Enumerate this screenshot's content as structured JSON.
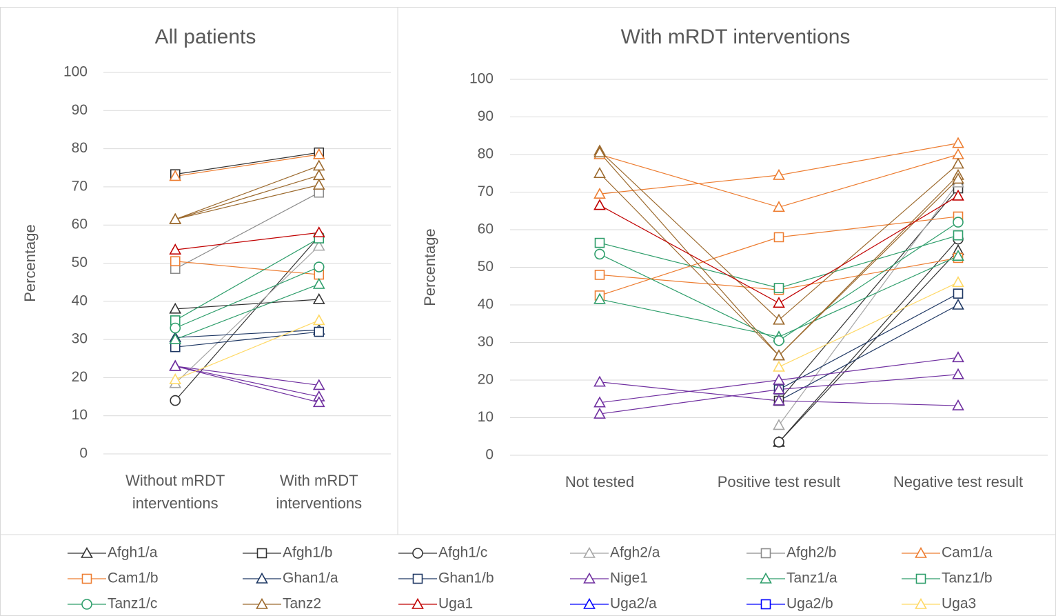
{
  "legend": [
    {
      "name": "Afgh1/a",
      "color": "#333333",
      "marker": "triangle"
    },
    {
      "name": "Afgh1/b",
      "color": "#333333",
      "marker": "square"
    },
    {
      "name": "Afgh1/c",
      "color": "#333333",
      "marker": "circle"
    },
    {
      "name": "Afgh2/a",
      "color": "#a5a5a5",
      "marker": "triangle"
    },
    {
      "name": "Afgh2/b",
      "color": "#8c8c8c",
      "marker": "square"
    },
    {
      "name": "Cam1/a",
      "color": "#ed7d31",
      "marker": "triangle"
    },
    {
      "name": "Cam1/b",
      "color": "#ed7d31",
      "marker": "square"
    },
    {
      "name": "Ghan1/a",
      "color": "#1f3864",
      "marker": "triangle"
    },
    {
      "name": "Ghan1/b",
      "color": "#1f3864",
      "marker": "square"
    },
    {
      "name": "Nige1",
      "color": "#7030a0",
      "marker": "triangle"
    },
    {
      "name": "Tanz1/a",
      "color": "#2e9e6b",
      "marker": "triangle"
    },
    {
      "name": "Tanz1/b",
      "color": "#2e9e6b",
      "marker": "square"
    },
    {
      "name": "Tanz1/c",
      "color": "#2e9e6b",
      "marker": "circle"
    },
    {
      "name": "Tanz2",
      "color": "#9c6a2e",
      "marker": "triangle"
    },
    {
      "name": "Uga1",
      "color": "#c00000",
      "marker": "triangle"
    },
    {
      "name": "Uga2/a",
      "color": "#0000ff",
      "marker": "triangle"
    },
    {
      "name": "Uga2/b",
      "color": "#0000ff",
      "marker": "square"
    },
    {
      "name": "Uga3",
      "color": "#ffd966",
      "marker": "triangle"
    }
  ],
  "chart_data": [
    {
      "type": "line",
      "title": "All patients",
      "y_label": "Percentage",
      "categories": [
        "Without mRDT interventions",
        "With mRDT interventions"
      ],
      "ylim": [
        0,
        100
      ],
      "yticks": [
        0,
        10,
        20,
        30,
        40,
        50,
        60,
        70,
        80,
        90,
        100
      ],
      "grid": true,
      "series": [
        {
          "name": "Afgh1/a",
          "values": [
            38,
            40.5
          ]
        },
        {
          "name": "Afgh1/b",
          "values": [
            73.3,
            79
          ]
        },
        {
          "name": "Afgh1/c",
          "values": [
            14,
            57
          ]
        },
        {
          "name": "Afgh2/a",
          "values": [
            18.5,
            54.5
          ]
        },
        {
          "name": "Afgh2/b",
          "values": [
            48.5,
            68.5
          ]
        },
        {
          "name": "Cam1/a",
          "values": [
            72.8,
            78.5
          ]
        },
        {
          "name": "Cam1/b",
          "values": [
            50.5,
            47
          ]
        },
        {
          "name": "Ghan1/a",
          "values": [
            30.5,
            32.5
          ]
        },
        {
          "name": "Ghan1/b",
          "values": [
            28,
            32
          ]
        },
        {
          "name": "Nige1",
          "values": [
            23,
            18
          ]
        },
        {
          "name": "Nige1",
          "values": [
            23,
            15
          ]
        },
        {
          "name": "Nige1",
          "values": [
            23,
            13.5
          ]
        },
        {
          "name": "Tanz1/a",
          "values": [
            30,
            44.5
          ]
        },
        {
          "name": "Tanz1/b",
          "values": [
            35,
            56.5
          ]
        },
        {
          "name": "Tanz1/c",
          "values": [
            33,
            49
          ]
        },
        {
          "name": "Tanz2",
          "values": [
            61.5,
            75.5
          ]
        },
        {
          "name": "Tanz2",
          "values": [
            61.5,
            73
          ]
        },
        {
          "name": "Tanz2",
          "values": [
            61.5,
            70.5
          ]
        },
        {
          "name": "Uga1",
          "values": [
            53.5,
            58
          ]
        },
        {
          "name": "Uga3",
          "values": [
            19.5,
            35
          ]
        }
      ]
    },
    {
      "type": "line",
      "title": "With mRDT interventions",
      "y_label": "Percentage",
      "categories": [
        "Not tested",
        "Positive test result",
        "Negative test result"
      ],
      "ylim": [
        0,
        100
      ],
      "yticks": [
        0,
        10,
        20,
        30,
        40,
        50,
        60,
        70,
        80,
        90,
        100
      ],
      "grid": true,
      "series": [
        {
          "name": "Afgh1/a",
          "values": [
            null,
            3.5,
            54.5
          ]
        },
        {
          "name": "Afgh1/b",
          "values": [
            null,
            14.5,
            71
          ]
        },
        {
          "name": "Afgh1/c",
          "values": [
            null,
            3.5,
            57.5
          ]
        },
        {
          "name": "Afgh2/a",
          "values": [
            null,
            8,
            72.5
          ]
        },
        {
          "name": "Cam1/a",
          "values": [
            69.5,
            74.5,
            83
          ]
        },
        {
          "name": "Cam1/a",
          "values": [
            80,
            66,
            80
          ]
        },
        {
          "name": "Cam1/b",
          "values": [
            48,
            44,
            52.5
          ]
        },
        {
          "name": "Cam1/b",
          "values": [
            42.5,
            58,
            63.5
          ]
        },
        {
          "name": "Ghan1/a",
          "values": [
            null,
            14.5,
            40
          ]
        },
        {
          "name": "Ghan1/b",
          "values": [
            null,
            17.5,
            43
          ]
        },
        {
          "name": "Nige1",
          "values": [
            19.5,
            14.5,
            13.2
          ]
        },
        {
          "name": "Nige1",
          "values": [
            14,
            20,
            26
          ]
        },
        {
          "name": "Nige1",
          "values": [
            11,
            17.5,
            21.5
          ]
        },
        {
          "name": "Tanz1/a",
          "values": [
            41.5,
            31.5,
            53
          ]
        },
        {
          "name": "Tanz1/b",
          "values": [
            56.5,
            44.5,
            58.5
          ]
        },
        {
          "name": "Tanz1/c",
          "values": [
            53.5,
            30.5,
            62
          ]
        },
        {
          "name": "Tanz2",
          "values": [
            81,
            36,
            77.5
          ]
        },
        {
          "name": "Tanz2",
          "values": [
            80.5,
            26.5,
            74.5
          ]
        },
        {
          "name": "Tanz2",
          "values": [
            75,
            26.5,
            73.5
          ]
        },
        {
          "name": "Uga1",
          "values": [
            66.5,
            40.5,
            69
          ]
        },
        {
          "name": "Uga3",
          "values": [
            null,
            23.5,
            46
          ]
        }
      ]
    }
  ]
}
